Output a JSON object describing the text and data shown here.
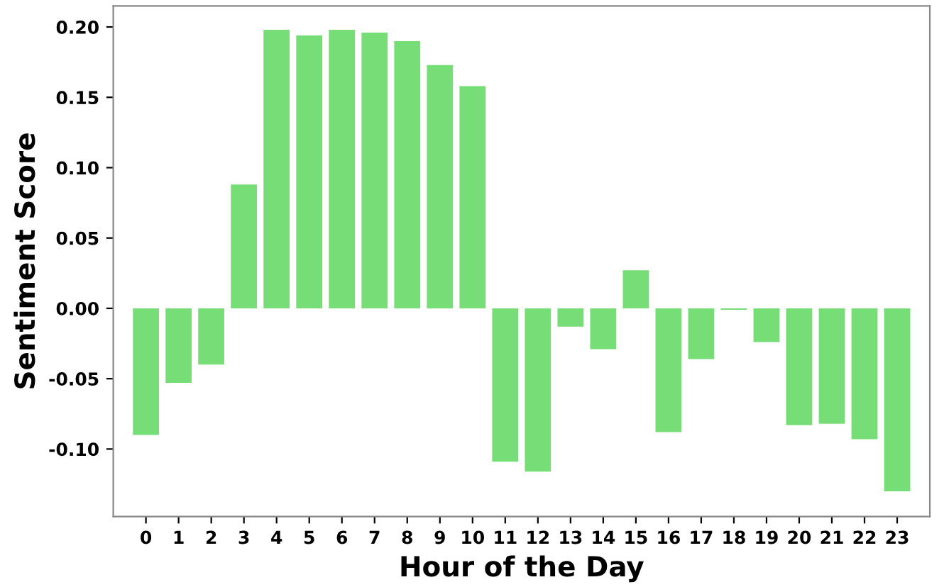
{
  "chart_data": {
    "type": "bar",
    "xlabel": "Hour of the Day",
    "ylabel": "Sentiment Score",
    "categories": [
      "0",
      "1",
      "2",
      "3",
      "4",
      "5",
      "6",
      "7",
      "8",
      "9",
      "10",
      "11",
      "12",
      "13",
      "14",
      "15",
      "16",
      "17",
      "18",
      "19",
      "20",
      "21",
      "22",
      "23"
    ],
    "values": [
      -0.09,
      -0.053,
      -0.04,
      0.088,
      0.198,
      0.194,
      0.198,
      0.196,
      0.19,
      0.173,
      0.158,
      -0.109,
      -0.116,
      -0.013,
      -0.029,
      0.027,
      -0.088,
      -0.036,
      -0.001,
      -0.024,
      -0.083,
      -0.082,
      -0.093,
      -0.13
    ],
    "color": "#77dd77",
    "ylim": [
      -0.148,
      0.215
    ],
    "yticks": [
      {
        "value": -0.1,
        "label": "-0.10"
      },
      {
        "value": -0.05,
        "label": "-0.05"
      },
      {
        "value": 0,
        "label": "0.00"
      },
      {
        "value": 0.05,
        "label": "0.05"
      },
      {
        "value": 0.1,
        "label": "0.10"
      },
      {
        "value": 0.15,
        "label": "0.15"
      },
      {
        "value": 0.2,
        "label": "0.20"
      }
    ],
    "grid": false
  }
}
